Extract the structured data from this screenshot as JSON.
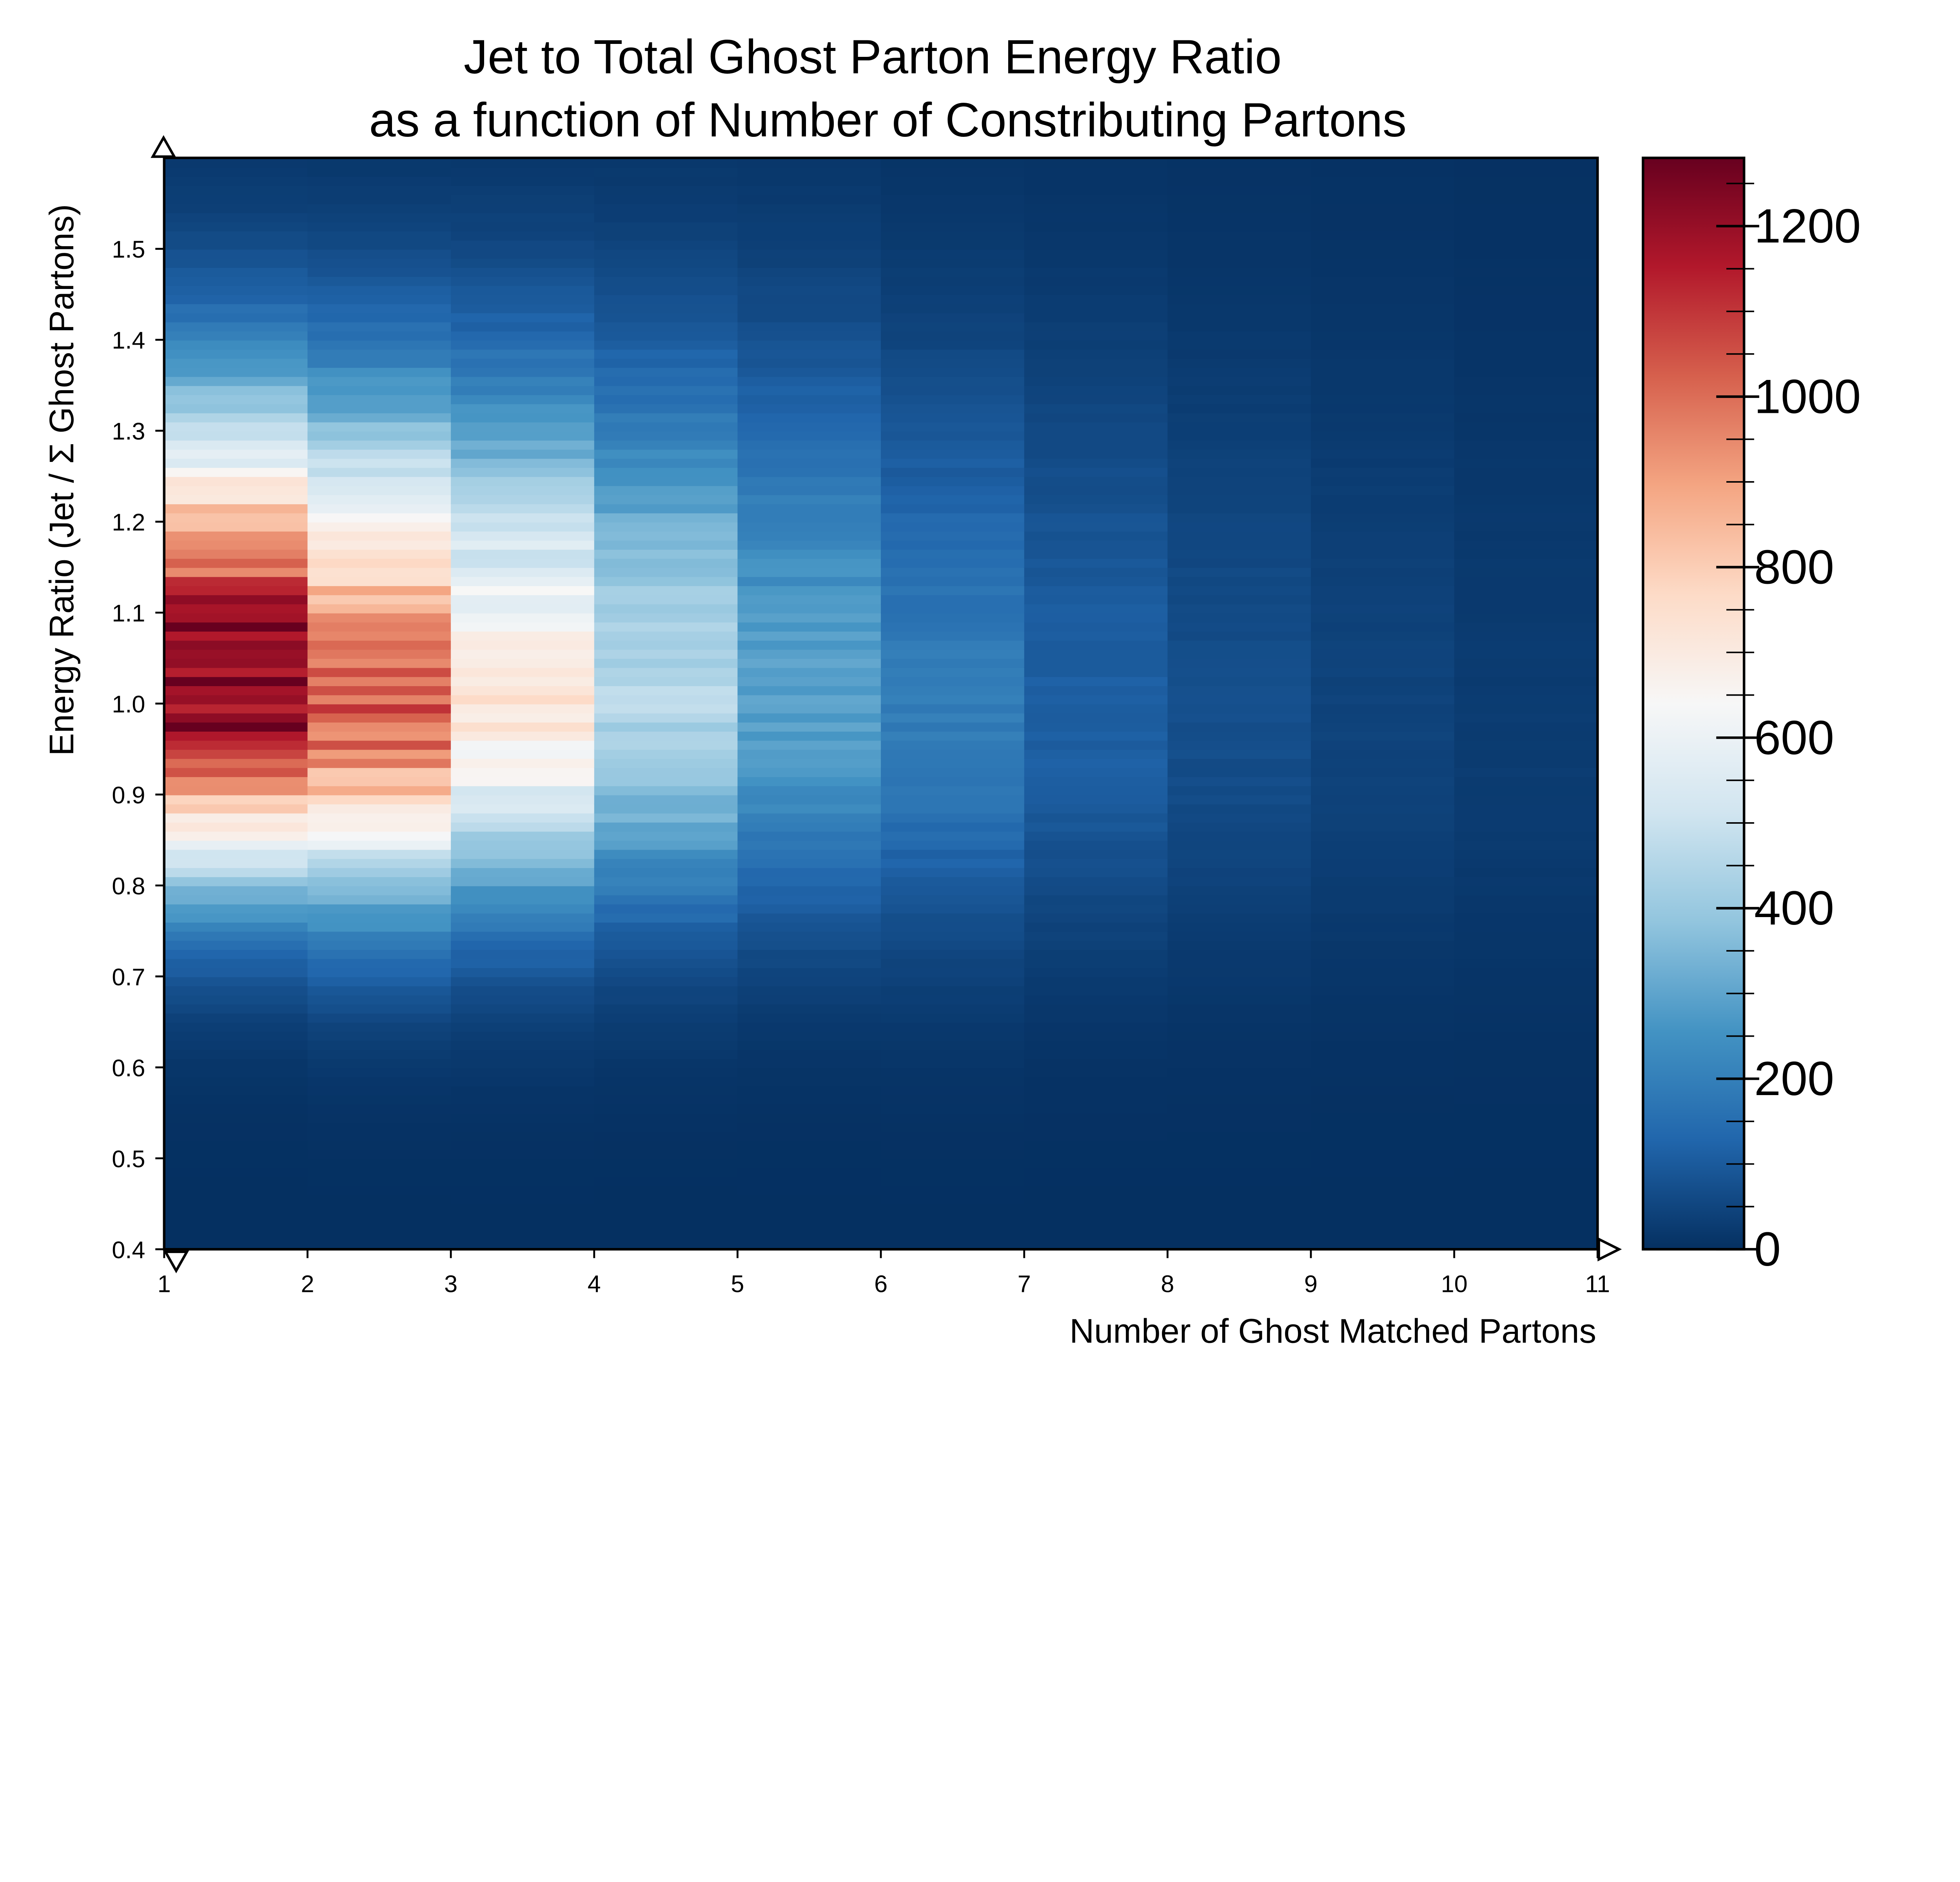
{
  "chart_data": {
    "type": "heatmap",
    "title_lines": [
      "Jet to Total Ghost Parton Energy Ratio",
      "as a function of Number of Constributing Partons"
    ],
    "xlabel": "Number of Ghost Matched Partons",
    "ylabel": "Energy Ratio (Jet / Σ Ghost Partons)",
    "xlim": [
      1,
      11
    ],
    "ylim": [
      0.4,
      1.6
    ],
    "x_ticks": [
      "1",
      "2",
      "3",
      "4",
      "5",
      "6",
      "7",
      "8",
      "9",
      "10",
      "11"
    ],
    "y_ticks": [
      "0.4",
      "0.5",
      "0.6",
      "0.7",
      "0.8",
      "0.9",
      "1.0",
      "1.1",
      "1.2",
      "1.3",
      "1.4",
      "1.5"
    ],
    "y_tick_values": [
      0.4,
      0.5,
      0.6,
      0.7,
      0.8,
      0.9,
      1.0,
      1.1,
      1.2,
      1.3,
      1.4,
      1.5
    ],
    "colormap": "RdBu_r",
    "colorbar": {
      "range": [
        0,
        1280
      ],
      "ticks": [
        "0",
        "200",
        "400",
        "600",
        "800",
        "1000",
        "1200"
      ],
      "tick_values": [
        0,
        200,
        400,
        600,
        800,
        1000,
        1200
      ]
    },
    "bins": {
      "x_edges": [
        1,
        2,
        3,
        4,
        5,
        6,
        7,
        8,
        9,
        10,
        11
      ],
      "y_range": [
        0.4,
        1.6
      ],
      "y_bin_width": 0.01
    },
    "columns": [
      {
        "n_partons": 1,
        "peak_ratio": 1.02,
        "peak_count": 1270
      },
      {
        "n_partons": 2,
        "peak_ratio": 1.0,
        "peak_count": 1010
      },
      {
        "n_partons": 3,
        "peak_ratio": 1.0,
        "peak_count": 700
      },
      {
        "n_partons": 4,
        "peak_ratio": 1.0,
        "peak_count": 450
      },
      {
        "n_partons": 5,
        "peak_ratio": 1.0,
        "peak_count": 290
      },
      {
        "n_partons": 6,
        "peak_ratio": 0.98,
        "peak_count": 190
      },
      {
        "n_partons": 7,
        "peak_ratio": 0.98,
        "peak_count": 115
      },
      {
        "n_partons": 8,
        "peak_ratio": 0.97,
        "peak_count": 70
      },
      {
        "n_partons": 9,
        "peak_ratio": 0.97,
        "peak_count": 45
      },
      {
        "n_partons": 10,
        "peak_ratio": 0.95,
        "peak_count": 28
      }
    ],
    "grid": false,
    "legend": "none"
  }
}
